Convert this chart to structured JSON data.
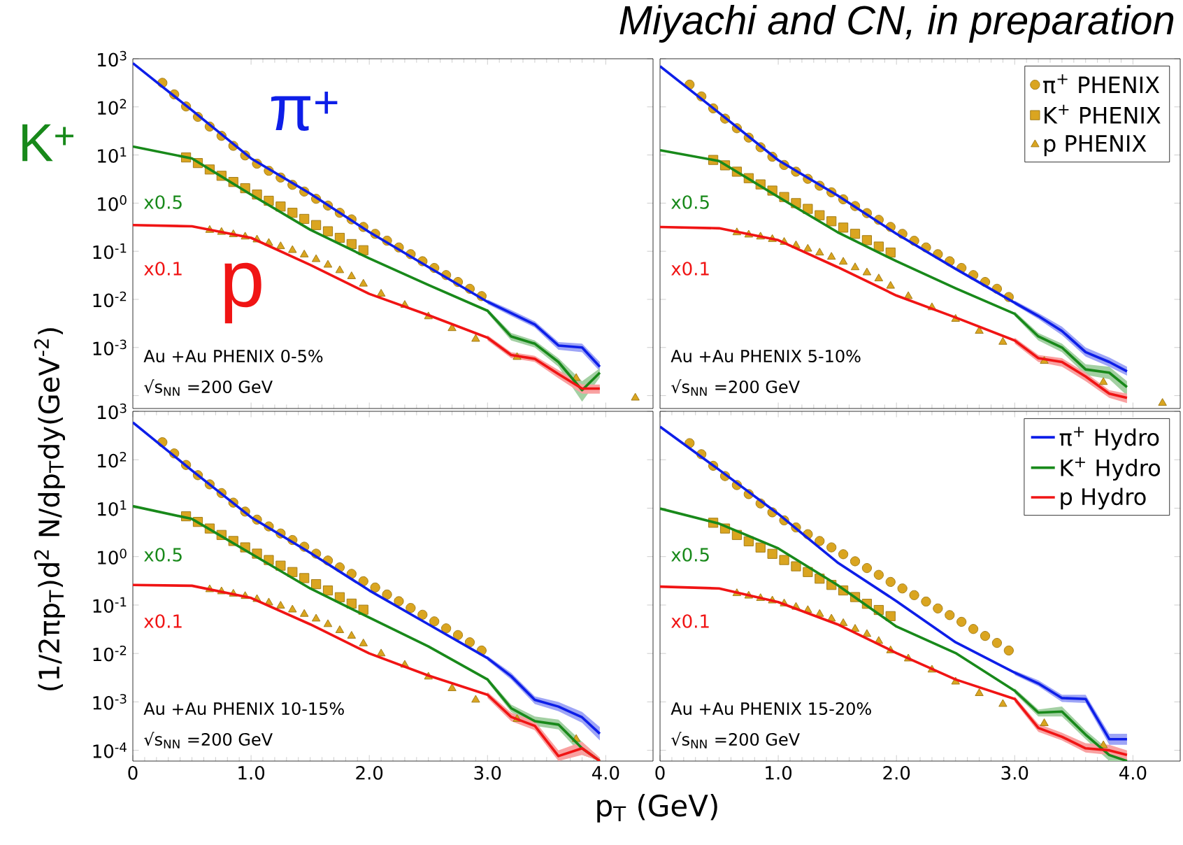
{
  "chart_data": [
    {
      "type": "line",
      "log": "y",
      "tick_labels": "y",
      "xlim": [
        0,
        4.4
      ],
      "ylim": [
        5.4e-05,
        1000
      ],
      "xticks": [
        {
          "value": 1,
          "label": null
        },
        {
          "value": 2,
          "label": null
        },
        {
          "value": 3,
          "label": null
        },
        {
          "value": 4,
          "label": null
        }
      ],
      "yticks": [
        {
          "value": 1000,
          "label": "10$^{3}$"
        },
        {
          "value": 100,
          "label": "10$^{2}$"
        },
        {
          "value": 10,
          "label": "10$^{1}$"
        },
        {
          "value": 1,
          "label": "10$^{0}$"
        },
        {
          "value": 0.1,
          "label": "10$^{-1}$"
        },
        {
          "value": 0.01,
          "label": "10$^{-2}$"
        },
        {
          "value": 0.001,
          "label": "10$^{-3}$"
        },
        {
          "value": 0.0001,
          "label": null
        }
      ],
      "annotations": [
        "x0.5",
        "x0.1",
        "Au +Au PHENIX 0-5%",
        "√s$_{NN}$ =200 GeV",
        "π$^{+}$",
        "K$^{+}$",
        "p"
      ],
      "series": [
        {
          "type": "scatter",
          "marker": "circle",
          "color": "#daa520",
          "x": [
            0.25,
            0.35,
            0.45,
            0.55,
            0.65,
            0.75,
            0.85,
            0.95,
            1.05,
            1.15,
            1.25,
            1.35,
            1.45,
            1.55,
            1.65,
            1.75,
            1.85,
            1.95,
            2.05,
            2.15,
            2.25,
            2.35,
            2.45,
            2.55,
            2.65,
            2.75,
            2.85,
            2.95
          ],
          "values": [
            316,
            182,
            102,
            62,
            39,
            25,
            15.5,
            9.8,
            6.6,
            4.7,
            3.4,
            2.4,
            1.74,
            1.23,
            0.89,
            0.63,
            0.46,
            0.32,
            0.23,
            0.166,
            0.12,
            0.087,
            0.062,
            0.045,
            0.032,
            0.023,
            0.0166,
            0.0117
          ]
        },
        {
          "type": "scatter",
          "marker": "square",
          "color": "#daa520",
          "x": [
            0.45,
            0.55,
            0.65,
            0.75,
            0.85,
            0.95,
            1.05,
            1.15,
            1.25,
            1.35,
            1.45,
            1.55,
            1.65,
            1.75,
            1.85,
            1.95
          ],
          "values": [
            8.9,
            6.8,
            5.0,
            3.7,
            2.75,
            2.04,
            1.51,
            1.12,
            0.85,
            0.63,
            0.47,
            0.35,
            0.26,
            0.19,
            0.141,
            0.105
          ]
        },
        {
          "type": "scatter",
          "marker": "triangle",
          "color": "#daa520",
          "x": [
            0.65,
            0.75,
            0.85,
            0.95,
            1.05,
            1.15,
            1.25,
            1.35,
            1.45,
            1.55,
            1.65,
            1.75,
            1.85,
            1.95,
            2.1,
            2.3,
            2.5,
            2.7,
            2.9,
            3.25,
            3.75,
            4.25
          ],
          "values": [
            0.275,
            0.25,
            0.224,
            0.2,
            0.174,
            0.148,
            0.126,
            0.105,
            0.085,
            0.068,
            0.052,
            0.04,
            0.03,
            0.021,
            0.013,
            0.0076,
            0.0044,
            0.0025,
            0.0015,
            0.00063,
            0.00023,
            9e-05
          ]
        },
        {
          "type": "line",
          "color": "#0d1ee8",
          "x": [
            0,
            0.5,
            1,
            1.5,
            2,
            2.5,
            3,
            3.2,
            3.4,
            3.6,
            3.8,
            3.95
          ],
          "values": [
            810,
            85,
            8.5,
            1.58,
            0.25,
            0.047,
            0.0089,
            0.0052,
            0.003,
            0.0011,
            0.001,
            0.0004
          ],
          "lower": [
            null,
            null,
            null,
            null,
            null,
            null,
            0.008,
            0.0045,
            0.0026,
            0.0009,
            0.0008,
            0.00032
          ],
          "upper": [
            null,
            null,
            null,
            null,
            null,
            null,
            0.0099,
            0.006,
            0.0035,
            0.0013,
            0.0012,
            0.0005
          ]
        },
        {
          "type": "line",
          "color": "#18891a",
          "x": [
            0,
            0.5,
            1,
            1.5,
            2,
            2.5,
            3,
            3.2,
            3.4,
            3.6,
            3.8,
            3.95
          ],
          "values": [
            15,
            8.5,
            1.5,
            0.28,
            0.071,
            0.02,
            0.0058,
            0.0017,
            0.0012,
            0.0005,
            0.00013,
            0.0003
          ],
          "lower": [
            null,
            null,
            null,
            null,
            null,
            null,
            0.0052,
            0.0014,
            0.001,
            0.0004,
            7.5e-05,
            0.00024
          ],
          "upper": [
            null,
            null,
            null,
            null,
            null,
            null,
            0.0064,
            0.002,
            0.0014,
            0.0006,
            0.0002,
            0.00037
          ]
        },
        {
          "type": "line",
          "color": "#f01414",
          "x": [
            0,
            0.5,
            1,
            1.5,
            2,
            2.5,
            3,
            3.2,
            3.4,
            3.6,
            3.8,
            3.95
          ],
          "values": [
            0.35,
            0.33,
            0.19,
            0.052,
            0.013,
            0.0047,
            0.0016,
            0.0007,
            0.00058,
            0.00028,
            0.00014,
            0.00014
          ],
          "lower": [
            null,
            null,
            null,
            null,
            null,
            null,
            0.0014,
            0.0006,
            0.0005,
            0.00023,
            0.00011,
            0.00011
          ],
          "upper": [
            null,
            null,
            null,
            null,
            null,
            null,
            0.0018,
            0.0008,
            0.00067,
            0.00034,
            0.00017,
            0.00017
          ]
        }
      ]
    },
    {
      "type": "line",
      "log": "y",
      "tick_labels": false,
      "legend": "top right",
      "title": "Miyachi and CN, in preparation",
      "xlim": [
        0,
        4.4
      ],
      "ylim": [
        5.4e-05,
        1000
      ],
      "xticks": [
        {
          "value": 1,
          "label": null
        },
        {
          "value": 2,
          "label": null
        },
        {
          "value": 3,
          "label": null
        },
        {
          "value": 4,
          "label": null
        }
      ],
      "yticks": [
        1000,
        100,
        10,
        1,
        0.1,
        0.01,
        0.001,
        0.0001
      ],
      "annotations": [
        "x0.5",
        "x0.1",
        "Au +Au PHENIX 5-10%",
        "√s$_{NN}$ =200 GeV"
      ],
      "series": [
        {
          "type": "scatter",
          "name": "π$^{+}$ PHENIX",
          "marker": "circle",
          "color": "#daa520",
          "x": [
            0.25,
            0.35,
            0.45,
            0.55,
            0.65,
            0.75,
            0.85,
            0.95,
            1.05,
            1.15,
            1.25,
            1.35,
            1.45,
            1.55,
            1.65,
            1.75,
            1.85,
            1.95,
            2.05,
            2.15,
            2.25,
            2.35,
            2.45,
            2.55,
            2.65,
            2.75,
            2.85,
            2.95
          ],
          "values": [
            290,
            165,
            93,
            57,
            36,
            23,
            14.5,
            9.2,
            6.2,
            4.5,
            3.2,
            2.3,
            1.68,
            1.2,
            0.87,
            0.62,
            0.45,
            0.32,
            0.23,
            0.165,
            0.12,
            0.087,
            0.062,
            0.045,
            0.032,
            0.023,
            0.0166,
            0.0112
          ]
        },
        {
          "type": "scatter",
          "name": "K$^{+}$ PHENIX",
          "marker": "square",
          "color": "#daa520",
          "x": [
            0.45,
            0.55,
            0.65,
            0.75,
            0.85,
            0.95,
            1.05,
            1.15,
            1.25,
            1.35,
            1.45,
            1.55,
            1.65,
            1.75,
            1.85,
            1.95
          ],
          "values": [
            7.9,
            6.1,
            4.5,
            3.3,
            2.45,
            1.82,
            1.34,
            1.0,
            0.76,
            0.56,
            0.42,
            0.31,
            0.23,
            0.17,
            0.125,
            0.094
          ]
        },
        {
          "type": "scatter",
          "name": "p PHENIX",
          "marker": "triangle",
          "color": "#daa520",
          "x": [
            0.65,
            0.75,
            0.85,
            0.95,
            1.05,
            1.15,
            1.25,
            1.35,
            1.45,
            1.55,
            1.65,
            1.75,
            1.85,
            1.95,
            2.1,
            2.3,
            2.5,
            2.7,
            2.9,
            3.25,
            3.75,
            4.25
          ],
          "values": [
            0.245,
            0.22,
            0.2,
            0.178,
            0.155,
            0.132,
            0.112,
            0.093,
            0.076,
            0.06,
            0.046,
            0.036,
            0.027,
            0.019,
            0.0116,
            0.0068,
            0.0039,
            0.0022,
            0.0013,
            0.00052,
            0.00019,
            7e-05
          ]
        },
        {
          "type": "line",
          "color": "#0d1ee8",
          "x": [
            0,
            0.5,
            1,
            1.5,
            2,
            2.5,
            3,
            3.2,
            3.4,
            3.6,
            3.8,
            3.95
          ],
          "values": [
            700,
            75,
            7.8,
            1.45,
            0.23,
            0.043,
            0.0085,
            0.0045,
            0.0022,
            0.0008,
            0.0005,
            0.00032
          ],
          "lower": [
            null,
            null,
            null,
            null,
            null,
            null,
            0.0077,
            0.0039,
            0.0018,
            0.00065,
            0.0004,
            0.00026
          ],
          "upper": [
            null,
            null,
            null,
            null,
            null,
            null,
            0.0094,
            0.0052,
            0.0027,
            0.001,
            0.00062,
            0.0004
          ]
        },
        {
          "type": "line",
          "color": "#18891a",
          "x": [
            0,
            0.5,
            1,
            1.5,
            2,
            2.5,
            3,
            3.2,
            3.4,
            3.6,
            3.8,
            3.95
          ],
          "values": [
            12.6,
            7.5,
            1.35,
            0.25,
            0.062,
            0.017,
            0.005,
            0.0017,
            0.001,
            0.00035,
            0.0003,
            0.00015
          ],
          "lower": [
            null,
            null,
            null,
            null,
            null,
            null,
            0.0045,
            0.0014,
            0.0008,
            0.00027,
            0.00022,
            0.0001
          ],
          "upper": [
            null,
            null,
            null,
            null,
            null,
            null,
            0.0056,
            0.002,
            0.0012,
            0.00045,
            0.0004,
            0.0002
          ]
        },
        {
          "type": "line",
          "color": "#f01414",
          "x": [
            0,
            0.5,
            1,
            1.5,
            2,
            2.5,
            3,
            3.2,
            3.4,
            3.6,
            3.8,
            3.95
          ],
          "values": [
            0.32,
            0.3,
            0.17,
            0.047,
            0.012,
            0.0042,
            0.0014,
            0.0006,
            0.0005,
            0.00025,
            0.00011,
            9e-05
          ],
          "lower": [
            null,
            null,
            null,
            null,
            null,
            null,
            0.0012,
            0.0005,
            0.0004,
            0.0002,
            9e-05,
            7e-05
          ],
          "upper": [
            null,
            null,
            null,
            null,
            null,
            null,
            0.0016,
            0.0007,
            0.0006,
            0.0003,
            0.00013,
            0.00011
          ]
        }
      ]
    },
    {
      "type": "line",
      "log": "y",
      "xlabel": "p$_{T}$ (GeV)",
      "ylabel": "(1/2πp$_{T}$)d$^{2}$ N/dp$_{T}$dy(GeV$^{-2}$)",
      "xlim": [
        0,
        4.4
      ],
      "ylim": [
        6e-05,
        1000
      ],
      "xticks": [
        0,
        {
          "value": 1,
          "label": "1.0"
        },
        {
          "value": 2,
          "label": "2.0"
        },
        {
          "value": 3,
          "label": "3.0"
        },
        {
          "value": 4,
          "label": "4.0"
        }
      ],
      "yticks": [
        {
          "value": 1000,
          "label": "10$^{3}$"
        },
        {
          "value": 100,
          "label": "10$^{2}$"
        },
        {
          "value": 10,
          "label": "10$^{1}$"
        },
        {
          "value": 1,
          "label": "10$^{0}$"
        },
        {
          "value": 0.1,
          "label": "10$^{-1}$"
        },
        {
          "value": 0.01,
          "label": "10$^{-2}$"
        },
        {
          "value": 0.001,
          "label": "10$^{-3}$"
        },
        {
          "value": 0.0001,
          "label": "10$^{-4}$"
        }
      ],
      "annotations": [
        "x0.5",
        "x0.1",
        "Au +Au PHENIX 10-15%",
        "√s$_{NN}$ =200 GeV"
      ],
      "series": [
        {
          "type": "scatter",
          "marker": "circle",
          "color": "#daa520",
          "x": [
            0.25,
            0.35,
            0.45,
            0.55,
            0.65,
            0.75,
            0.85,
            0.95,
            1.05,
            1.15,
            1.25,
            1.35,
            1.45,
            1.55,
            1.65,
            1.75,
            1.85,
            1.95,
            2.05,
            2.15,
            2.25,
            2.35,
            2.45,
            2.55,
            2.65,
            2.75,
            2.85,
            2.95
          ],
          "values": [
            230,
            135,
            78,
            48,
            31,
            20.5,
            13,
            8.5,
            5.8,
            4.2,
            3.0,
            2.2,
            1.6,
            1.15,
            0.83,
            0.6,
            0.44,
            0.31,
            0.23,
            0.165,
            0.12,
            0.087,
            0.063,
            0.046,
            0.033,
            0.024,
            0.017,
            0.0115
          ]
        },
        {
          "type": "scatter",
          "marker": "square",
          "color": "#daa520",
          "x": [
            0.45,
            0.55,
            0.65,
            0.75,
            0.85,
            0.95,
            1.05,
            1.15,
            1.25,
            1.35,
            1.45,
            1.55,
            1.65,
            1.75,
            1.85,
            1.95
          ],
          "values": [
            6.8,
            5.2,
            3.8,
            2.8,
            2.1,
            1.55,
            1.15,
            0.85,
            0.65,
            0.48,
            0.36,
            0.27,
            0.2,
            0.145,
            0.107,
            0.08
          ]
        },
        {
          "type": "scatter",
          "marker": "triangle",
          "color": "#daa520",
          "x": [
            0.65,
            0.75,
            0.85,
            0.95,
            1.05,
            1.15,
            1.25,
            1.35,
            1.45,
            1.55,
            1.65,
            1.75,
            1.85,
            1.95,
            2.1,
            2.3,
            2.5,
            2.7,
            2.9,
            3.25,
            3.75
          ],
          "values": [
            0.21,
            0.19,
            0.17,
            0.152,
            0.132,
            0.112,
            0.096,
            0.08,
            0.065,
            0.052,
            0.04,
            0.03,
            0.023,
            0.016,
            0.0099,
            0.0058,
            0.0033,
            0.0019,
            0.0011,
            0.00044,
            0.00017
          ]
        },
        {
          "type": "line",
          "color": "#0d1ee8",
          "x": [
            0,
            0.5,
            1,
            1.5,
            2,
            2.5,
            3,
            3.2,
            3.4,
            3.6,
            3.8,
            3.95
          ],
          "values": [
            590,
            60,
            6.5,
            1.2,
            0.2,
            0.04,
            0.008,
            0.0034,
            0.0011,
            0.0008,
            0.00048,
            0.00022
          ],
          "lower": [
            null,
            null,
            null,
            null,
            null,
            null,
            0.0072,
            0.0029,
            0.0009,
            0.00064,
            0.00037,
            0.00016
          ],
          "upper": [
            null,
            null,
            null,
            null,
            null,
            null,
            0.0089,
            0.004,
            0.0013,
            0.001,
            0.00062,
            0.0003
          ]
        },
        {
          "type": "line",
          "color": "#18891a",
          "x": [
            0,
            0.5,
            1,
            1.5,
            2,
            2.5,
            3,
            3.2,
            3.4,
            3.6,
            3.8,
            3.95
          ],
          "values": [
            11,
            6,
            1.15,
            0.22,
            0.055,
            0.014,
            0.0029,
            0.00074,
            0.0004,
            0.00034,
            0.00011,
            6e-05
          ],
          "lower": [
            null,
            null,
            null,
            null,
            null,
            null,
            0.0026,
            0.00062,
            0.00032,
            0.00027,
            8e-05,
            6e-05
          ],
          "upper": [
            null,
            null,
            null,
            null,
            null,
            null,
            0.0032,
            0.00088,
            0.0005,
            0.00043,
            0.00015,
            7e-05
          ]
        },
        {
          "type": "line",
          "color": "#f01414",
          "x": [
            0,
            0.5,
            1,
            1.5,
            2,
            2.5,
            3,
            3.2,
            3.4,
            3.6,
            3.8,
            3.95
          ],
          "values": [
            0.26,
            0.25,
            0.14,
            0.04,
            0.01,
            0.0035,
            0.0014,
            0.00049,
            0.00032,
            7.6e-05,
            0.00011,
            6e-05
          ],
          "lower": [
            null,
            null,
            null,
            null,
            null,
            null,
            0.0012,
            0.0004,
            0.00026,
            6e-05,
            8e-05,
            6e-05
          ],
          "upper": [
            null,
            null,
            null,
            null,
            null,
            null,
            0.0016,
            0.0006,
            0.0004,
            0.0001,
            0.00015,
            7e-05
          ]
        }
      ]
    },
    {
      "type": "line",
      "log": "y",
      "tick_labels": "x",
      "legend": "top right",
      "xlim": [
        0,
        4.4
      ],
      "ylim": [
        6e-05,
        1000
      ],
      "xticks": [
        0,
        {
          "value": 1,
          "label": "1.0"
        },
        {
          "value": 2,
          "label": "2.0"
        },
        {
          "value": 3,
          "label": "3.0"
        },
        {
          "value": 4,
          "label": "4.0"
        }
      ],
      "yticks": [
        1000,
        100,
        10,
        1,
        0.1,
        0.01,
        0.001,
        0.0001
      ],
      "annotations": [
        "x0.5",
        "x0.1",
        "Au +Au PHENIX 15-20%",
        "√s$_{NN}$ =200 GeV"
      ],
      "series": [
        {
          "type": "scatter",
          "marker": "circle",
          "color": "#daa520",
          "x": [
            0.25,
            0.35,
            0.45,
            0.55,
            0.65,
            0.75,
            0.85,
            0.95,
            1.05,
            1.15,
            1.25,
            1.35,
            1.45,
            1.55,
            1.65,
            1.75,
            1.85,
            1.95,
            2.05,
            2.15,
            2.25,
            2.35,
            2.45,
            2.55,
            2.65,
            2.75,
            2.85,
            2.95
          ],
          "values": [
            220,
            130,
            75,
            46,
            30,
            19.5,
            12.5,
            8.2,
            5.6,
            4.0,
            2.9,
            2.1,
            1.55,
            1.12,
            0.8,
            0.58,
            0.42,
            0.3,
            0.22,
            0.16,
            0.118,
            0.085,
            0.062,
            0.045,
            0.032,
            0.023,
            0.0165,
            0.0115
          ]
        },
        {
          "type": "scatter",
          "marker": "square",
          "color": "#daa520",
          "x": [
            0.45,
            0.55,
            0.65,
            0.75,
            0.85,
            0.95,
            1.05,
            1.15,
            1.25,
            1.35,
            1.45,
            1.55,
            1.65,
            1.75,
            1.85,
            1.95
          ],
          "values": [
            5.0,
            3.8,
            2.8,
            2.07,
            1.54,
            1.14,
            0.85,
            0.63,
            0.48,
            0.35,
            0.26,
            0.2,
            0.146,
            0.106,
            0.079,
            0.059
          ]
        },
        {
          "type": "scatter",
          "marker": "triangle",
          "color": "#daa520",
          "x": [
            0.65,
            0.75,
            0.85,
            0.95,
            1.05,
            1.15,
            1.25,
            1.35,
            1.45,
            1.55,
            1.65,
            1.75,
            1.85,
            1.95,
            2.1,
            2.3,
            2.5,
            2.7,
            2.9,
            3.25,
            3.75
          ],
          "values": [
            0.174,
            0.155,
            0.138,
            0.123,
            0.107,
            0.091,
            0.078,
            0.065,
            0.052,
            0.042,
            0.032,
            0.025,
            0.018,
            0.0115,
            0.0078,
            0.0046,
            0.0026,
            0.0015,
            0.0009,
            0.00036,
            0.000126
          ]
        },
        {
          "type": "line",
          "name": "π$^{+}$ Hydro",
          "color": "#0d1ee8",
          "x": [
            0,
            0.5,
            1,
            1.5,
            2,
            2.5,
            3,
            3.2,
            3.4,
            3.6,
            3.8,
            3.95
          ],
          "values": [
            480,
            62,
            7.6,
            0.76,
            0.12,
            0.017,
            0.004,
            0.0024,
            0.0012,
            0.00115,
            0.00017,
            0.00017
          ],
          "lower": [
            null,
            null,
            null,
            null,
            null,
            null,
            0.0036,
            0.0021,
            0.001,
            0.00095,
            0.00013,
            0.00013
          ],
          "upper": [
            null,
            null,
            null,
            null,
            null,
            null,
            0.0044,
            0.0028,
            0.0014,
            0.0014,
            0.00022,
            0.00022
          ]
        },
        {
          "type": "line",
          "name": "K$^{+}$ Hydro",
          "color": "#18891a",
          "x": [
            0,
            0.5,
            1,
            1.5,
            2,
            2.5,
            3,
            3.2,
            3.4,
            3.6,
            3.8,
            3.95
          ],
          "values": [
            9.8,
            4.8,
            1.48,
            0.26,
            0.036,
            0.0102,
            0.0017,
            0.0006,
            0.00063,
            0.00021,
            8e-05,
            6e-05
          ],
          "lower": [
            null,
            null,
            null,
            null,
            null,
            null,
            0.0015,
            0.0005,
            0.0005,
            0.00017,
            6e-05,
            6e-05
          ],
          "upper": [
            null,
            null,
            null,
            null,
            null,
            null,
            0.0019,
            0.0007,
            0.0008,
            0.00026,
            0.0001,
            7e-05
          ]
        },
        {
          "type": "line",
          "name": "p Hydro",
          "color": "#f01414",
          "x": [
            0,
            0.5,
            1,
            1.5,
            2,
            2.5,
            3,
            3.2,
            3.4,
            3.6,
            3.8,
            3.95
          ],
          "values": [
            0.24,
            0.22,
            0.115,
            0.04,
            0.0102,
            0.0029,
            0.00115,
            0.00029,
            0.00019,
            0.00011,
            0.0001,
            8e-05
          ],
          "lower": [
            null,
            null,
            null,
            null,
            null,
            null,
            0.001,
            0.00024,
            0.00016,
            9e-05,
            8e-05,
            6e-05
          ],
          "upper": [
            null,
            null,
            null,
            null,
            null,
            null,
            0.0013,
            0.00035,
            0.00023,
            0.00014,
            0.00013,
            0.0001
          ]
        }
      ]
    }
  ]
}
